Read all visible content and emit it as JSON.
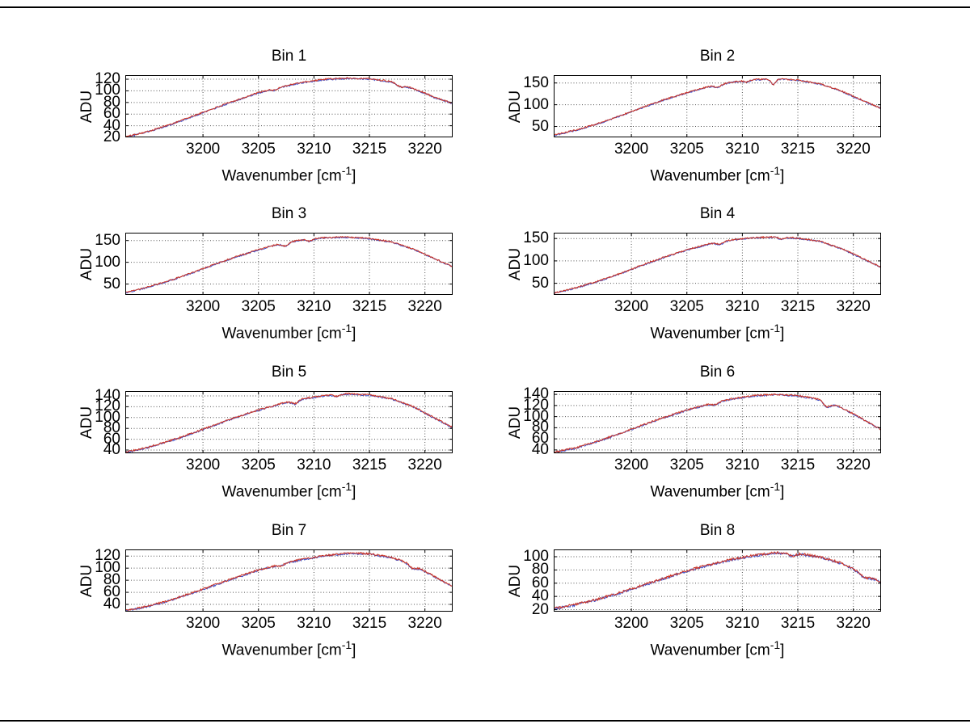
{
  "figure": {
    "background": "#ffffff",
    "frame_color": "#000000"
  },
  "labels": {
    "x_prefix": "Wavenumber [cm",
    "x_sup": "-1",
    "x_suffix": "]",
    "y_label": "ADU"
  },
  "chart_data": [
    {
      "type": "line",
      "title": "Bin 1",
      "xlabel": "Wavenumber [cm^-1]",
      "ylabel": "ADU",
      "xlim": [
        3193,
        3222.5
      ],
      "xticks": [
        3200,
        3205,
        3210,
        3215,
        3220
      ],
      "ylim": [
        20,
        127
      ],
      "yticks": [
        20,
        40,
        60,
        80,
        100,
        120
      ],
      "grid": true,
      "line_color": "#cd3322",
      "underlay_color": "#4050c8",
      "noise": 1.3,
      "x": [
        3193,
        3195,
        3197,
        3199,
        3201,
        3203,
        3205,
        3207,
        3209,
        3211,
        3213,
        3215,
        3217,
        3219,
        3221,
        3222.5
      ],
      "y": [
        21,
        30,
        42,
        56,
        70,
        84,
        97,
        107,
        115,
        120,
        122,
        121,
        116,
        104,
        88,
        79
      ],
      "dips": [
        {
          "x": 3206.5,
          "d": 3,
          "w": 0.3
        },
        {
          "x": 3217.8,
          "d": 4,
          "w": 0.35
        }
      ]
    },
    {
      "type": "line",
      "title": "Bin 2",
      "xlabel": "Wavenumber [cm^-1]",
      "ylabel": "ADU",
      "xlim": [
        3193,
        3222.5
      ],
      "xticks": [
        3200,
        3205,
        3210,
        3215,
        3220
      ],
      "ylim": [
        25,
        168
      ],
      "yticks": [
        50,
        100,
        150
      ],
      "grid": true,
      "line_color": "#cd3322",
      "underlay_color": "#4050c8",
      "noise": 1.6,
      "x": [
        3193,
        3195,
        3197,
        3199,
        3201,
        3203,
        3205,
        3207,
        3209,
        3211,
        3213,
        3215,
        3217,
        3219,
        3221,
        3222.5
      ],
      "y": [
        30,
        42,
        57,
        75,
        94,
        112,
        128,
        142,
        152,
        158,
        160,
        157,
        148,
        131,
        108,
        92
      ],
      "dips": [
        {
          "x": 3207.8,
          "d": 5,
          "w": 0.3
        },
        {
          "x": 3210.4,
          "d": 4,
          "w": 0.25
        },
        {
          "x": 3212.8,
          "d": 13,
          "w": 0.2
        }
      ]
    },
    {
      "type": "line",
      "title": "Bin 3",
      "xlabel": "Wavenumber [cm^-1]",
      "ylabel": "ADU",
      "xlim": [
        3193,
        3222.5
      ],
      "xticks": [
        3200,
        3205,
        3210,
        3215,
        3220
      ],
      "ylim": [
        25,
        168
      ],
      "yticks": [
        50,
        100,
        150
      ],
      "grid": true,
      "line_color": "#cd3322",
      "underlay_color": "#4050c8",
      "noise": 1.6,
      "x": [
        3193,
        3195,
        3197,
        3199,
        3201,
        3203,
        3205,
        3207,
        3209,
        3211,
        3213,
        3215,
        3217,
        3219,
        3221,
        3222.5
      ],
      "y": [
        30,
        43,
        58,
        76,
        95,
        113,
        129,
        143,
        152,
        157,
        158,
        155,
        147,
        130,
        107,
        90
      ],
      "dips": [
        {
          "x": 3207.4,
          "d": 7,
          "w": 0.28
        },
        {
          "x": 3209.6,
          "d": 5,
          "w": 0.25
        }
      ]
    },
    {
      "type": "line",
      "title": "Bin 4",
      "xlabel": "Wavenumber [cm^-1]",
      "ylabel": "ADU",
      "xlim": [
        3193,
        3222.5
      ],
      "xticks": [
        3200,
        3205,
        3210,
        3215,
        3220
      ],
      "ylim": [
        24,
        163
      ],
      "yticks": [
        50,
        100,
        150
      ],
      "grid": true,
      "line_color": "#cd3322",
      "underlay_color": "#4050c8",
      "noise": 1.6,
      "x": [
        3193,
        3195,
        3197,
        3199,
        3201,
        3203,
        3205,
        3207,
        3209,
        3211,
        3213,
        3215,
        3217,
        3219,
        3221,
        3222.5
      ],
      "y": [
        28,
        40,
        55,
        72,
        91,
        109,
        125,
        138,
        147,
        152,
        154,
        151,
        144,
        127,
        104,
        86
      ],
      "dips": [
        {
          "x": 3208,
          "d": 5,
          "w": 0.3
        },
        {
          "x": 3213.5,
          "d": 4,
          "w": 0.25
        }
      ]
    },
    {
      "type": "line",
      "title": "Bin 5",
      "xlabel": "Wavenumber [cm^-1]",
      "ylabel": "ADU",
      "xlim": [
        3193,
        3222.5
      ],
      "xticks": [
        3200,
        3205,
        3210,
        3215,
        3220
      ],
      "ylim": [
        34,
        149
      ],
      "yticks": [
        40,
        60,
        80,
        100,
        120,
        140
      ],
      "grid": true,
      "line_color": "#cd3322",
      "underlay_color": "#4050c8",
      "noise": 1.5,
      "x": [
        3193,
        3195,
        3197,
        3199,
        3201,
        3203,
        3205,
        3207,
        3209,
        3211,
        3213,
        3215,
        3217,
        3219,
        3221,
        3222.5
      ],
      "y": [
        36,
        45,
        57,
        71,
        86,
        101,
        114,
        126,
        135,
        141,
        144,
        142,
        135,
        120,
        98,
        82
      ],
      "dips": [
        {
          "x": 3208.3,
          "d": 6,
          "w": 0.28
        },
        {
          "x": 3212,
          "d": 3,
          "w": 0.25
        }
      ]
    },
    {
      "type": "line",
      "title": "Bin 6",
      "xlabel": "Wavenumber [cm^-1]",
      "ylabel": "ADU",
      "xlim": [
        3193,
        3222.5
      ],
      "xticks": [
        3200,
        3205,
        3210,
        3215,
        3220
      ],
      "ylim": [
        34,
        146
      ],
      "yticks": [
        40,
        60,
        80,
        100,
        120,
        140
      ],
      "grid": true,
      "line_color": "#cd3322",
      "underlay_color": "#4050c8",
      "noise": 1.5,
      "x": [
        3193,
        3195,
        3197,
        3199,
        3201,
        3203,
        3205,
        3207,
        3209,
        3211,
        3213,
        3215,
        3217,
        3219,
        3221,
        3222.5
      ],
      "y": [
        36,
        44,
        56,
        70,
        85,
        99,
        112,
        123,
        132,
        138,
        140,
        138,
        131,
        116,
        94,
        77
      ],
      "dips": [
        {
          "x": 3207.5,
          "d": 4,
          "w": 0.3
        },
        {
          "x": 3217.6,
          "d": 9,
          "w": 0.3
        }
      ]
    },
    {
      "type": "line",
      "title": "Bin 7",
      "xlabel": "Wavenumber [cm^-1]",
      "ylabel": "ADU",
      "xlim": [
        3193,
        3222.5
      ],
      "xticks": [
        3200,
        3205,
        3210,
        3215,
        3220
      ],
      "ylim": [
        28,
        131
      ],
      "yticks": [
        40,
        60,
        80,
        100,
        120
      ],
      "grid": true,
      "line_color": "#cd3322",
      "underlay_color": "#4050c8",
      "noise": 1.5,
      "x": [
        3193,
        3195,
        3197,
        3199,
        3201,
        3203,
        3205,
        3207,
        3209,
        3211,
        3213,
        3215,
        3217,
        3219,
        3221,
        3222.5
      ],
      "y": [
        30,
        37,
        47,
        59,
        72,
        85,
        97,
        107,
        115,
        121,
        125,
        124,
        118,
        105,
        85,
        70
      ],
      "dips": [
        {
          "x": 3207,
          "d": 3,
          "w": 0.3
        },
        {
          "x": 3218.9,
          "d": 6,
          "w": 0.3
        }
      ]
    },
    {
      "type": "line",
      "title": "Bin 8",
      "xlabel": "Wavenumber [cm^-1]",
      "ylabel": "ADU",
      "xlim": [
        3193,
        3222.5
      ],
      "xticks": [
        3200,
        3205,
        3210,
        3215,
        3220
      ],
      "ylim": [
        17,
        111
      ],
      "yticks": [
        20,
        40,
        60,
        80,
        100
      ],
      "grid": true,
      "line_color": "#cd3322",
      "underlay_color": "#4050c8",
      "noise": 1.8,
      "x": [
        3193,
        3195,
        3197,
        3199,
        3201,
        3203,
        3205,
        3207,
        3209,
        3211,
        3213,
        3215,
        3217,
        3219,
        3221,
        3222.5
      ],
      "y": [
        22,
        28,
        36,
        46,
        57,
        68,
        79,
        88,
        96,
        102,
        106,
        105,
        100,
        90,
        74,
        62
      ],
      "dips": [
        {
          "x": 3214.5,
          "d": 4,
          "w": 0.3
        },
        {
          "x": 3221,
          "d": 5,
          "w": 0.4
        }
      ]
    }
  ]
}
